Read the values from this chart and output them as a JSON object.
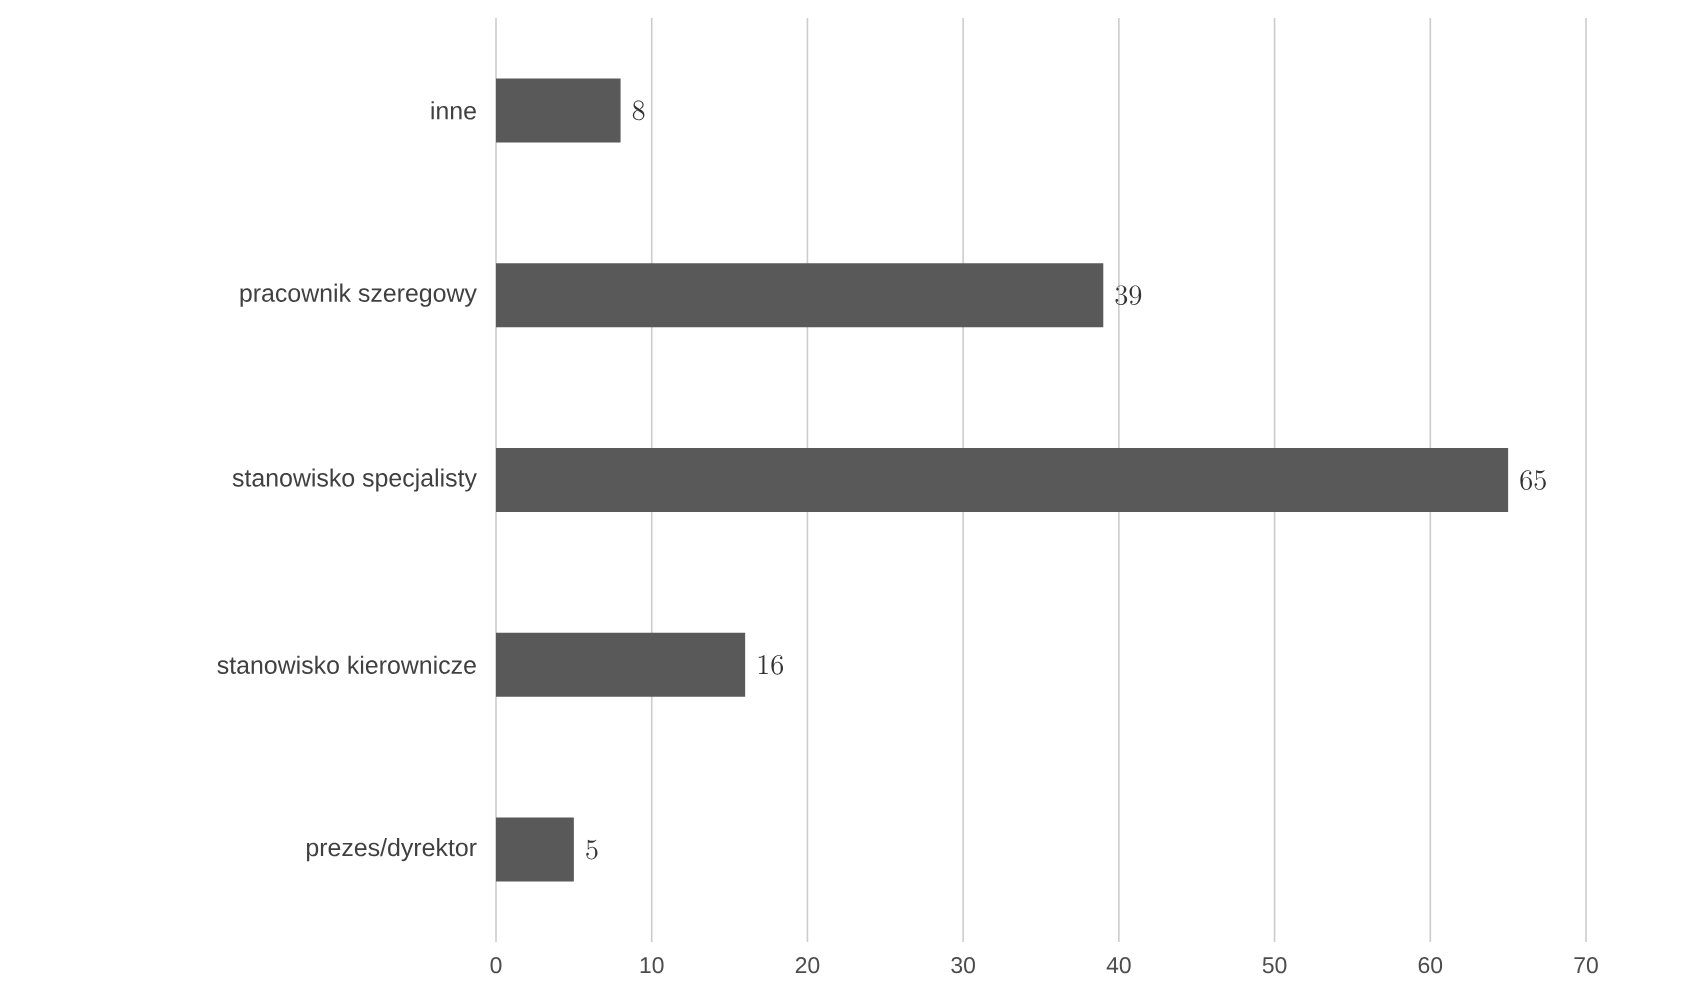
{
  "chart_data": {
    "type": "bar",
    "orientation": "horizontal",
    "categories": [
      "inne",
      "pracownik szeregowy",
      "stanowisko specjalisty",
      "stanowisko kierownicze",
      "prezes/dyrektor"
    ],
    "values": [
      8,
      39,
      65,
      16,
      5
    ],
    "color": "#595959",
    "data_labels": true,
    "xlim": [
      0,
      70
    ],
    "xticks": [
      0,
      10,
      20,
      30,
      40,
      50,
      60,
      70
    ],
    "grid": "x"
  }
}
